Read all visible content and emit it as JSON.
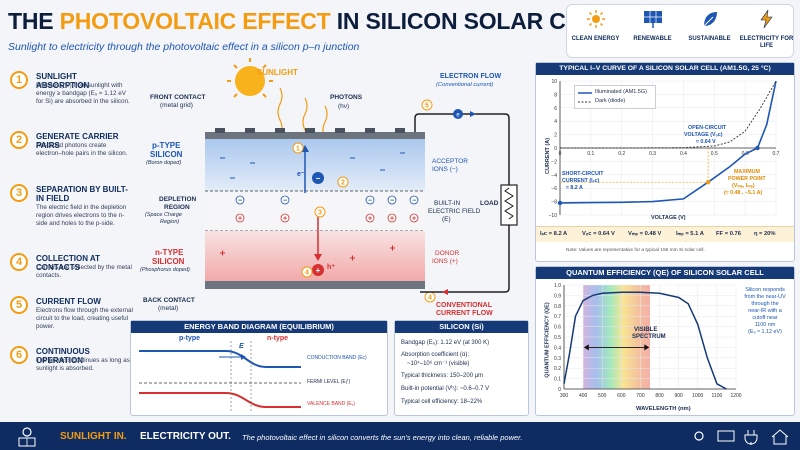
{
  "header": {
    "title_a": "THE ",
    "title_b": "PHOTOVOLTAIC EFFECT",
    "title_c": " IN SILICON SOLAR CELLS",
    "subtitle": "Sunlight to electricity through the photovoltaic effect in a silicon p–n junction"
  },
  "badges": [
    {
      "label": "CLEAN ENERGY",
      "icon": "sun-icon"
    },
    {
      "label": "RENEWABLE",
      "icon": "solar-panel-icon"
    },
    {
      "label": "SUSTAINABLE",
      "icon": "leaf-icon"
    },
    {
      "label": "ELECTRICITY FOR LIFE",
      "icon": "lightning-icon"
    }
  ],
  "steps": [
    {
      "n": "1",
      "title": "SUNLIGHT ABSORPTION",
      "desc": "Photons (hν) from sunlight with energy ≥ bandgap (E₉ ≈ 1.12 eV for Si) are absorbed in the silicon."
    },
    {
      "n": "2",
      "title": "GENERATE CARRIER PAIRS",
      "desc": "Absorbed photons create electron–hole pairs in the silicon."
    },
    {
      "n": "3",
      "title": "SEPARATION BY BUILT-IN FIELD",
      "desc": "The electric field in the depletion region drives electrons to the n-side and holes to the p-side."
    },
    {
      "n": "4",
      "title": "COLLECTION AT CONTACTS",
      "desc": "Carriers are collected by the metal contacts."
    },
    {
      "n": "5",
      "title": "CURRENT FLOW",
      "desc": "Electrons flow through the external circuit to the load, creating useful power."
    },
    {
      "n": "6",
      "title": "CONTINUOUS OPERATION",
      "desc": "The process continues as long as sunlight is absorbed."
    }
  ],
  "cell": {
    "sunlight": "SUNLIGHT",
    "photons": "PHOTONS",
    "photons2": "(hν)",
    "front": "FRONT CONTACT",
    "front2": "(metal grid)",
    "ptype": "p-TYPE",
    "ptype2": "SILICON",
    "pdope": "(Boron doped)",
    "depl1": "DEPLETION",
    "depl2": "REGION",
    "depl3": "(Space Charge",
    "depl4": "Region)",
    "ntype": "n-TYPE",
    "ntype2": "SILICON",
    "ndope": "(Phosphorus doped)",
    "back": "BACK CONTACT",
    "back2": "(metal)",
    "acc1": "ACCEPTOR",
    "acc2": "IONS (−)",
    "field1": "BUILT-IN",
    "field2": "ELECTRIC FIELD",
    "field3": "(E)",
    "don1": "DONOR",
    "don2": "IONS (+)",
    "eflow1": "ELECTRON FLOW",
    "eflow2": "(Conventional current)",
    "load": "LOAD",
    "cflow1": "CONVENTIONAL",
    "cflow2": "CURRENT FLOW",
    "e": "e⁻",
    "h": "h⁺"
  },
  "band": {
    "title": "ENERGY BAND DIAGRAM (EQUILIBRIUM)",
    "ptype": "p-type",
    "ntype": "n-type",
    "E": "E",
    "cb": "CONDUCTION BAND (Eᴄ)",
    "fermi": "FERMI LEVEL (Eƒ)",
    "vb": "VALENCE BAND (Eᵥ)"
  },
  "silicon": {
    "title": "SILICON (Si)",
    "items": [
      "Bandgap (E₉): 1.12 eV (at 300 K)",
      "Absorption coefficient (α):",
      "~10⁴–10⁶ cm⁻¹ (visible)",
      "Typical thickness: 150–200 μm",
      "Built-in potential (Vᵇᵢ): ~0.6–0.7 V",
      "Typical cell efficiency: 18–22%"
    ]
  },
  "iv": {
    "title": "TYPICAL I–V CURVE OF A SILICON SOLAR CELL (AM1.5G, 25 °C)",
    "ylabel": "CURRENT (A)",
    "xlabel": "VOLTAGE (V)",
    "legend": [
      "Illuminated (AM1.5G)",
      "Dark (diode)"
    ],
    "voc1": "OPEN-CIRCUIT",
    "voc2": "VOLTAGE (Vₒc)",
    "voc3": "≈ 0.64 V",
    "isc1": "SHORT-CIRCUIT",
    "isc2": "CURRENT (Iₛc)",
    "isc3": "≈ 8.2 A",
    "mpp1": "MAXIMUM",
    "mpp2": "POWER POINT",
    "mpp3": "(Vₘₚ, Iₘₚ)",
    "mpp4": "(≈ 0.48 , −5.1 A)",
    "params": [
      "Iₛc = 8.2 A",
      "Vₒc = 0.64 V",
      "Vₘₚ = 0.48 V",
      "Iₘₚ = 5.1 A",
      "FF = 0.76",
      "η ≈ 20%"
    ],
    "note": "Note: Values are representative for a typical 156 mm Si solar cell.",
    "xticks": [
      "0",
      "0.1",
      "0.2",
      "0.3",
      "0.4",
      "0.5",
      "0.6",
      "0.7"
    ],
    "yticks": [
      "10",
      "8",
      "6",
      "4",
      "2",
      "0",
      "−2",
      "−4",
      "−6",
      "−8",
      "−10"
    ]
  },
  "qe": {
    "title": "QUANTUM EFFICIENCY (QE) OF SILICON SOLAR CELL",
    "ylabel": "QUANTUM EFFICIENCY (QE)",
    "xlabel": "WAVELENGTH (nm)",
    "visible1": "VISIBLE",
    "visible2": "SPECTRUM",
    "note": [
      "Silicon responds",
      "from the near-UV",
      "through the",
      "near-IR with a",
      "cutoff near",
      "1100 nm",
      "(E₉ ≈ 1.12 eV)"
    ],
    "xticks": [
      "300",
      "400",
      "500",
      "600",
      "700",
      "800",
      "900",
      "1000",
      "1100",
      "1200"
    ],
    "yticks": [
      "1.0",
      "0.9",
      "0.8",
      "0.7",
      "0.6",
      "0.5",
      "0.4",
      "0.3",
      "0.2",
      "0.1",
      "0"
    ]
  },
  "footer": {
    "a": "SUNLIGHT IN.",
    "b": "ELECTRICITY OUT.",
    "c": "The photovoltaic effect in silicon converts the sun's energy into clean, reliable power."
  },
  "chart_data": [
    {
      "type": "line",
      "title": "TYPICAL I–V CURVE OF A SILICON SOLAR CELL (AM1.5G, 25 °C)",
      "xlabel": "VOLTAGE (V)",
      "ylabel": "CURRENT (A)",
      "xlim": [
        0,
        0.7
      ],
      "ylim": [
        -10,
        10
      ],
      "series": [
        {
          "name": "Illuminated (AM1.5G)",
          "x": [
            0,
            0.1,
            0.2,
            0.3,
            0.4,
            0.48,
            0.55,
            0.6,
            0.64,
            0.67,
            0.7
          ],
          "y": [
            -8.2,
            -8.15,
            -8.1,
            -8.0,
            -7.6,
            -5.1,
            -2.8,
            -0.9,
            0,
            3.5,
            10
          ]
        },
        {
          "name": "Dark (diode)",
          "x": [
            0,
            0.2,
            0.4,
            0.5,
            0.55,
            0.6,
            0.65,
            0.7
          ],
          "y": [
            0,
            0,
            0.05,
            0.3,
            0.9,
            2.5,
            6,
            10
          ]
        }
      ]
    },
    {
      "type": "area",
      "title": "QUANTUM EFFICIENCY (QE) OF SILICON SOLAR CELL",
      "xlabel": "WAVELENGTH (nm)",
      "ylabel": "QUANTUM EFFICIENCY (QE)",
      "xlim": [
        300,
        1200
      ],
      "ylim": [
        0,
        1
      ],
      "x": [
        300,
        330,
        360,
        400,
        450,
        500,
        600,
        700,
        800,
        900,
        950,
        1000,
        1050,
        1100,
        1150
      ],
      "y": [
        0.05,
        0.35,
        0.7,
        0.85,
        0.9,
        0.92,
        0.93,
        0.93,
        0.92,
        0.88,
        0.82,
        0.62,
        0.3,
        0.05,
        0
      ]
    }
  ]
}
